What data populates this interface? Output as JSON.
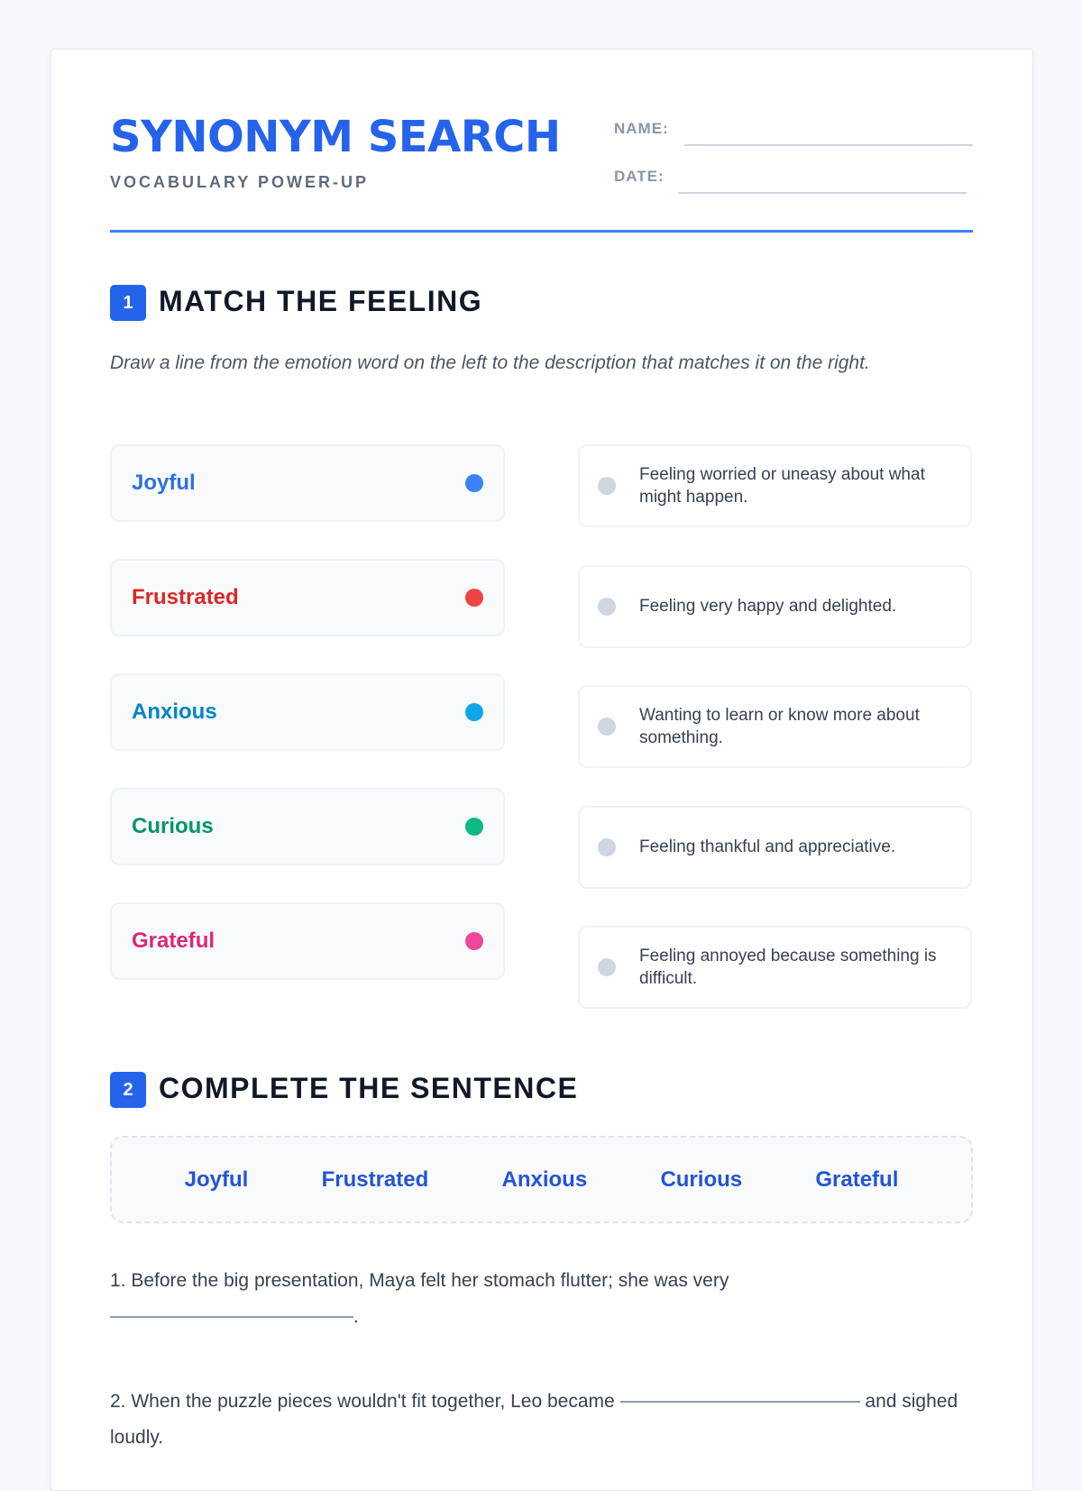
{
  "header": {
    "title": "SYNONYM SEARCH",
    "subtitle": "VOCABULARY POWER-UP",
    "name_label": "NAME:",
    "date_label": "DATE:"
  },
  "section1": {
    "number": "1",
    "title": "MATCH THE FEELING",
    "instructions": "Draw a line from the emotion word on the left to the description that matches it on the right.",
    "words": [
      {
        "label": "Joyful",
        "color": "#2f6fe4",
        "dot": "#3b82f6"
      },
      {
        "label": "Frustrated",
        "color": "#dc2626",
        "dot": "#ef4444"
      },
      {
        "label": "Anxious",
        "color": "#0284c7",
        "dot": "#0ea5e9"
      },
      {
        "label": "Curious",
        "color": "#059669",
        "dot": "#10b981"
      },
      {
        "label": "Grateful",
        "color": "#db2777",
        "dot": "#ec4899"
      }
    ],
    "descriptions": [
      "Feeling worried or uneasy about what might happen.",
      "Feeling very happy and delighted.",
      "Wanting to learn or know more about something.",
      "Feeling thankful and appreciative.",
      "Feeling annoyed because something is difficult."
    ]
  },
  "section2": {
    "number": "2",
    "title": "COMPLETE THE SENTENCE",
    "word_bank": [
      "Joyful",
      "Frustrated",
      "Anxious",
      "Curious",
      "Grateful"
    ],
    "sentences": [
      {
        "before": "1. Before the big presentation, Maya felt her stomach flutter; she was very",
        "after": "."
      },
      {
        "before": "2. When the puzzle pieces wouldn't fit together, Leo became",
        "after": "and sighed loudly."
      }
    ]
  }
}
